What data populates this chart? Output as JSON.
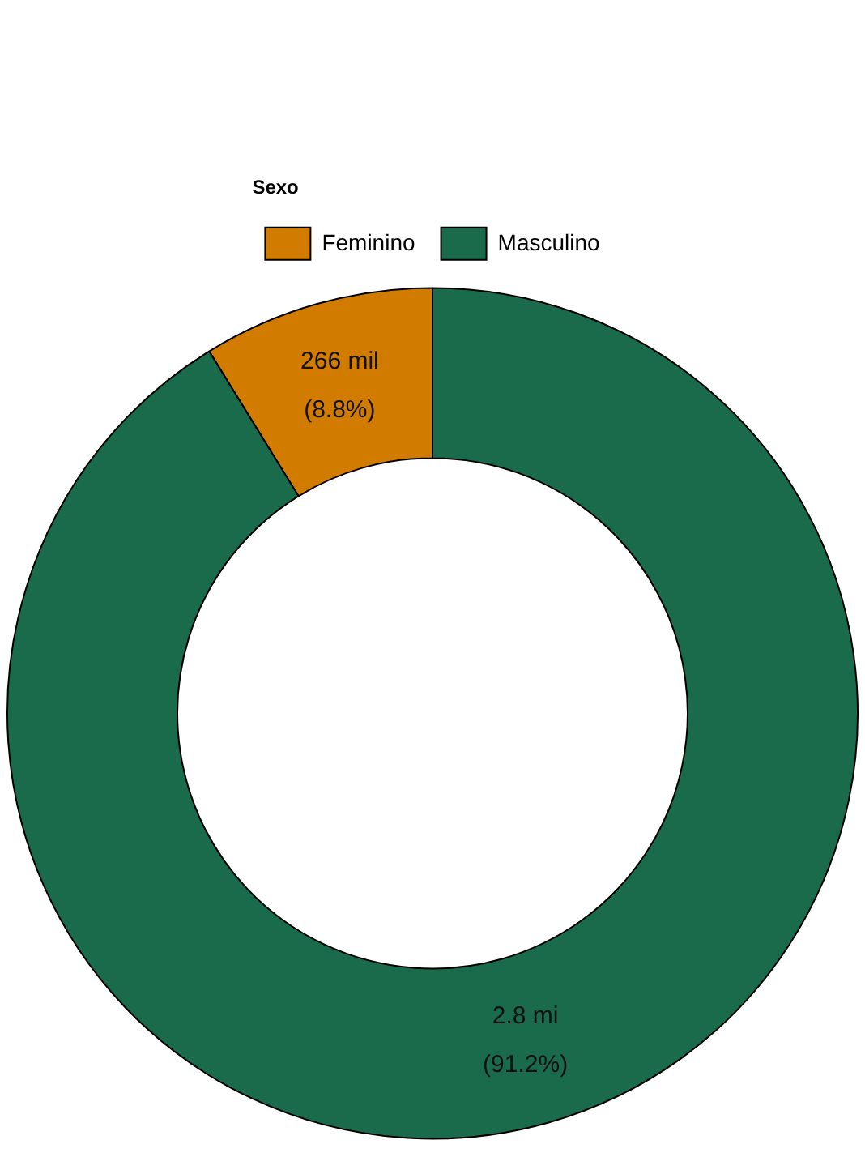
{
  "chart_data": {
    "type": "donut",
    "legend_title": "Sexo",
    "legend": "top",
    "categories": [
      "Feminino",
      "Masculino"
    ],
    "values": [
      8.8,
      91.2
    ],
    "colors": [
      "#d17c00",
      "#1a6b4b"
    ],
    "value_labels": [
      "266 mil\n(8.8%)",
      "2.8 mi\n(91.2%)"
    ]
  }
}
